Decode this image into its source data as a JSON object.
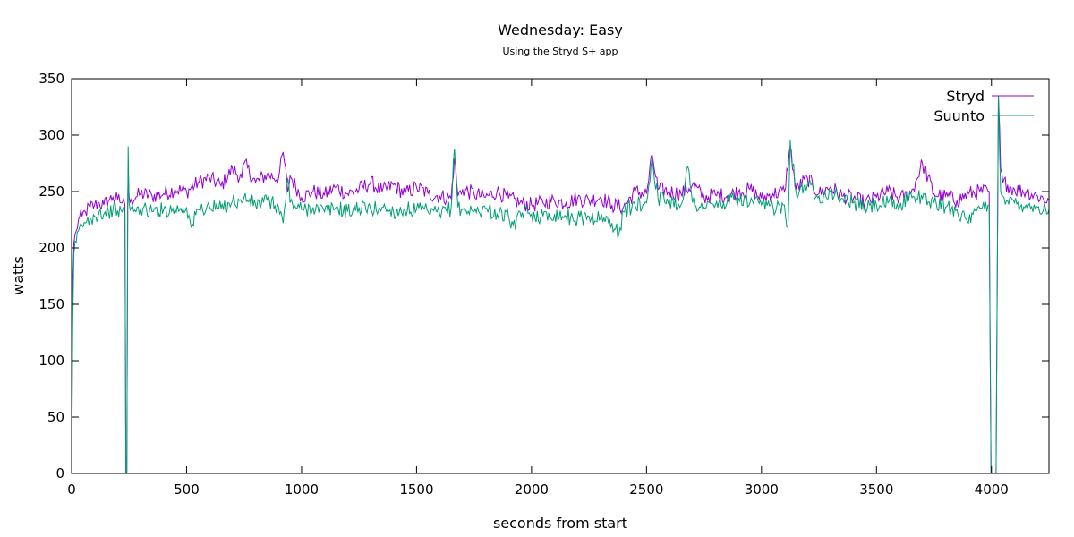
{
  "chart_data": {
    "type": "line",
    "title": "Wednesday: Easy",
    "subtitle": "Using the Stryd S+ app",
    "xlabel": "seconds from start",
    "ylabel": "watts",
    "xlim": [
      0,
      4250
    ],
    "ylim": [
      0,
      350
    ],
    "x_ticks": [
      0,
      500,
      1000,
      1500,
      2000,
      2500,
      3000,
      3500,
      4000
    ],
    "y_ticks": [
      0,
      50,
      100,
      150,
      200,
      250,
      300,
      350
    ],
    "grid": false,
    "legend_position": "top-right",
    "series": [
      {
        "name": "Stryd",
        "color": "#9400d3",
        "x": [
          0,
          5,
          10,
          20,
          30,
          45,
          60,
          80,
          100,
          120,
          140,
          160,
          180,
          200,
          220,
          232,
          236,
          238,
          240,
          244,
          246,
          250,
          260,
          280,
          300,
          350,
          400,
          450,
          500,
          550,
          600,
          650,
          700,
          740,
          750,
          800,
          850,
          900,
          920,
          940,
          950,
          1000,
          1050,
          1100,
          1150,
          1200,
          1250,
          1300,
          1350,
          1400,
          1450,
          1500,
          1550,
          1600,
          1650,
          1665,
          1680,
          1700,
          1750,
          1800,
          1850,
          1900,
          1950,
          2000,
          2050,
          2100,
          2150,
          2200,
          2250,
          2300,
          2350,
          2400,
          2450,
          2500,
          2525,
          2550,
          2600,
          2650,
          2700,
          2750,
          2800,
          2850,
          2900,
          2950,
          3000,
          3050,
          3100,
          3125,
          3150,
          3200,
          3250,
          3300,
          3350,
          3400,
          3450,
          3500,
          3550,
          3600,
          3650,
          3700,
          3750,
          3800,
          3850,
          3900,
          3950,
          3990,
          3998,
          4000,
          4010,
          4020,
          4030,
          4040,
          4050,
          4070,
          4100,
          4150,
          4200,
          4250
        ],
        "values": [
          0,
          170,
          205,
          215,
          225,
          228,
          232,
          236,
          238,
          240,
          238,
          242,
          245,
          243,
          240,
          238,
          0,
          0,
          0,
          240,
          268,
          246,
          243,
          245,
          248,
          246,
          248,
          252,
          250,
          258,
          262,
          255,
          270,
          262,
          275,
          258,
          265,
          262,
          285,
          250,
          264,
          245,
          250,
          247,
          254,
          248,
          252,
          258,
          250,
          256,
          248,
          254,
          248,
          246,
          244,
          280,
          246,
          252,
          248,
          245,
          250,
          244,
          240,
          238,
          240,
          242,
          240,
          244,
          242,
          245,
          238,
          236,
          250,
          248,
          282,
          252,
          250,
          248,
          256,
          245,
          247,
          246,
          250,
          252,
          244,
          248,
          250,
          290,
          252,
          262,
          248,
          254,
          246,
          244,
          240,
          245,
          250,
          244,
          248,
          275,
          248,
          246,
          242,
          248,
          250,
          250,
          0,
          0,
          0,
          0,
          335,
          270,
          258,
          256,
          252,
          250,
          246,
          242
        ]
      },
      {
        "name": "Suunto",
        "color": "#009e73",
        "x": [
          0,
          5,
          10,
          20,
          30,
          45,
          60,
          80,
          100,
          120,
          140,
          160,
          180,
          200,
          220,
          232,
          236,
          238,
          240,
          244,
          246,
          250,
          260,
          280,
          300,
          350,
          400,
          450,
          500,
          520,
          550,
          600,
          650,
          700,
          740,
          750,
          800,
          850,
          900,
          920,
          940,
          950,
          1000,
          1050,
          1100,
          1150,
          1200,
          1250,
          1300,
          1350,
          1400,
          1450,
          1500,
          1550,
          1600,
          1650,
          1665,
          1680,
          1700,
          1750,
          1800,
          1850,
          1900,
          1930,
          1950,
          2000,
          2050,
          2100,
          2150,
          2200,
          2250,
          2300,
          2350,
          2380,
          2400,
          2450,
          2500,
          2525,
          2550,
          2600,
          2650,
          2680,
          2700,
          2750,
          2800,
          2850,
          2900,
          2950,
          3000,
          3050,
          3100,
          3115,
          3125,
          3150,
          3200,
          3250,
          3300,
          3350,
          3400,
          3450,
          3500,
          3550,
          3600,
          3650,
          3700,
          3750,
          3800,
          3850,
          3900,
          3950,
          3990,
          3998,
          4000,
          4010,
          4020,
          4030,
          4040,
          4050,
          4070,
          4100,
          4150,
          4200,
          4250
        ],
        "values": [
          0,
          135,
          195,
          205,
          215,
          220,
          222,
          226,
          228,
          232,
          230,
          232,
          234,
          233,
          232,
          230,
          0,
          0,
          0,
          232,
          290,
          240,
          236,
          232,
          235,
          232,
          234,
          234,
          236,
          218,
          234,
          236,
          235,
          242,
          240,
          245,
          238,
          242,
          236,
          222,
          262,
          240,
          234,
          236,
          232,
          236,
          232,
          236,
          234,
          236,
          232,
          234,
          234,
          232,
          230,
          235,
          288,
          236,
          234,
          232,
          235,
          230,
          228,
          216,
          232,
          230,
          228,
          230,
          228,
          226,
          228,
          226,
          222,
          212,
          232,
          238,
          240,
          280,
          244,
          242,
          238,
          272,
          240,
          236,
          238,
          240,
          244,
          240,
          238,
          236,
          238,
          218,
          296,
          250,
          256,
          246,
          250,
          244,
          240,
          236,
          238,
          240,
          236,
          248,
          244,
          240,
          236,
          234,
          222,
          235,
          238,
          0,
          0,
          0,
          0,
          335,
          250,
          246,
          242,
          240,
          238,
          236,
          234
        ]
      }
    ]
  }
}
